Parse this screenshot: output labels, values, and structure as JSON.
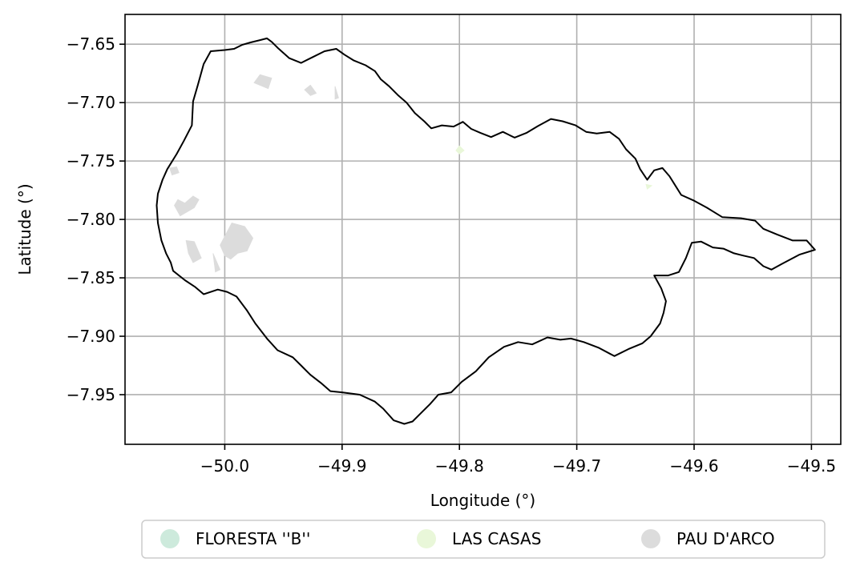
{
  "chart_data": {
    "type": "map",
    "title": "",
    "xlabel": "Longitude (°)",
    "ylabel": "Latitude (°)",
    "xlim": [
      -50.085,
      -49.475
    ],
    "ylim": [
      -7.9925,
      -7.6245
    ],
    "x_ticks": [
      -50.0,
      -49.9,
      -49.8,
      -49.7,
      -49.6,
      -49.5
    ],
    "x_tick_labels": [
      "−50.0",
      "−49.9",
      "−49.8",
      "−49.7",
      "−49.6",
      "−49.5"
    ],
    "y_ticks": [
      -7.65,
      -7.7,
      -7.75,
      -7.8,
      -7.85,
      -7.9,
      -7.95
    ],
    "y_tick_labels": [
      "−7.65",
      "−7.70",
      "−7.75",
      "−7.80",
      "−7.85",
      "−7.90",
      "−7.95"
    ],
    "grid": true,
    "legend_position": "bottom-center",
    "categories": [
      {
        "name": "FLORESTA ''B''",
        "color": "#cdeadc"
      },
      {
        "name": "LAS CASAS",
        "color": "#e9f7d9"
      },
      {
        "name": "PAU D'ARCO",
        "color": "#dcdcdc"
      }
    ],
    "boundary": {
      "color": "#000000",
      "lon_lat": [
        [
          -50.028,
          -7.7195
        ],
        [
          -50.027,
          -7.699
        ],
        [
          -50.023,
          -7.685
        ],
        [
          -50.018,
          -7.667
        ],
        [
          -50.012,
          -7.656
        ],
        [
          -50.0,
          -7.655
        ],
        [
          -49.992,
          -7.654
        ],
        [
          -49.985,
          -7.6505
        ],
        [
          -49.978,
          -7.6485
        ],
        [
          -49.97,
          -7.6465
        ],
        [
          -49.964,
          -7.645
        ],
        [
          -49.96,
          -7.648
        ],
        [
          -49.955,
          -7.653
        ],
        [
          -49.945,
          -7.662
        ],
        [
          -49.935,
          -7.666
        ],
        [
          -49.925,
          -7.661
        ],
        [
          -49.915,
          -7.656
        ],
        [
          -49.905,
          -7.654
        ],
        [
          -49.898,
          -7.659
        ],
        [
          -49.89,
          -7.664
        ],
        [
          -49.88,
          -7.668
        ],
        [
          -49.872,
          -7.673
        ],
        [
          -49.867,
          -7.68
        ],
        [
          -49.86,
          -7.686
        ],
        [
          -49.852,
          -7.694
        ],
        [
          -49.845,
          -7.7
        ],
        [
          -49.838,
          -7.709
        ],
        [
          -49.83,
          -7.716
        ],
        [
          -49.824,
          -7.722
        ],
        [
          -49.815,
          -7.7195
        ],
        [
          -49.805,
          -7.7205
        ],
        [
          -49.797,
          -7.7165
        ],
        [
          -49.79,
          -7.7225
        ],
        [
          -49.782,
          -7.726
        ],
        [
          -49.773,
          -7.7295
        ],
        [
          -49.763,
          -7.725
        ],
        [
          -49.753,
          -7.73
        ],
        [
          -49.743,
          -7.726
        ],
        [
          -49.733,
          -7.72
        ],
        [
          -49.722,
          -7.714
        ],
        [
          -49.712,
          -7.716
        ],
        [
          -49.701,
          -7.7195
        ],
        [
          -49.692,
          -7.725
        ],
        [
          -49.683,
          -7.7265
        ],
        [
          -49.672,
          -7.725
        ],
        [
          -49.664,
          -7.731
        ],
        [
          -49.658,
          -7.74
        ],
        [
          -49.65,
          -7.748
        ],
        [
          -49.646,
          -7.757
        ],
        [
          -49.64,
          -7.766
        ],
        [
          -49.634,
          -7.758
        ],
        [
          -49.627,
          -7.756
        ],
        [
          -49.621,
          -7.763
        ],
        [
          -49.616,
          -7.771
        ],
        [
          -49.611,
          -7.779
        ],
        [
          -49.6,
          -7.784
        ],
        [
          -49.589,
          -7.79
        ],
        [
          -49.576,
          -7.798
        ],
        [
          -49.56,
          -7.799
        ],
        [
          -49.548,
          -7.801
        ],
        [
          -49.541,
          -7.808
        ],
        [
          -49.529,
          -7.813
        ],
        [
          -49.516,
          -7.818
        ],
        [
          -49.504,
          -7.818
        ],
        [
          -49.497,
          -7.826
        ],
        [
          -49.51,
          -7.83
        ],
        [
          -49.525,
          -7.838
        ],
        [
          -49.534,
          -7.843
        ],
        [
          -49.541,
          -7.84
        ],
        [
          -49.549,
          -7.833
        ],
        [
          -49.558,
          -7.831
        ],
        [
          -49.566,
          -7.829
        ],
        [
          -49.575,
          -7.825
        ],
        [
          -49.584,
          -7.824
        ],
        [
          -49.594,
          -7.819
        ],
        [
          -49.602,
          -7.82
        ],
        [
          -49.607,
          -7.833
        ],
        [
          -49.613,
          -7.845
        ],
        [
          -49.622,
          -7.848
        ],
        [
          -49.634,
          -7.848
        ],
        [
          -49.628,
          -7.859
        ],
        [
          -49.624,
          -7.87
        ],
        [
          -49.626,
          -7.88
        ],
        [
          -49.629,
          -7.889
        ],
        [
          -49.637,
          -7.9
        ],
        [
          -49.644,
          -7.906
        ],
        [
          -49.656,
          -7.911
        ],
        [
          -49.668,
          -7.917
        ],
        [
          -49.681,
          -7.91
        ],
        [
          -49.694,
          -7.905
        ],
        [
          -49.705,
          -7.902
        ],
        [
          -49.714,
          -7.903
        ],
        [
          -49.725,
          -7.901
        ],
        [
          -49.738,
          -7.907
        ],
        [
          -49.75,
          -7.905
        ],
        [
          -49.762,
          -7.909
        ],
        [
          -49.775,
          -7.918
        ],
        [
          -49.786,
          -7.93
        ],
        [
          -49.798,
          -7.939
        ],
        [
          -49.807,
          -7.948
        ],
        [
          -49.818,
          -7.95
        ],
        [
          -49.825,
          -7.958
        ],
        [
          -49.833,
          -7.966
        ],
        [
          -49.84,
          -7.973
        ],
        [
          -49.847,
          -7.975
        ],
        [
          -49.856,
          -7.972
        ],
        [
          -49.865,
          -7.962
        ],
        [
          -49.872,
          -7.956
        ],
        [
          -49.885,
          -7.95
        ],
        [
          -49.9,
          -7.948
        ],
        [
          -49.91,
          -7.947
        ],
        [
          -49.918,
          -7.94
        ],
        [
          -49.927,
          -7.933
        ],
        [
          -49.935,
          -7.925
        ],
        [
          -49.942,
          -7.918
        ],
        [
          -49.955,
          -7.912
        ],
        [
          -49.964,
          -7.902
        ],
        [
          -49.974,
          -7.889
        ],
        [
          -49.981,
          -7.878
        ],
        [
          -49.99,
          -7.866
        ],
        [
          -49.998,
          -7.862
        ],
        [
          -50.006,
          -7.86
        ],
        [
          -50.018,
          -7.864
        ],
        [
          -50.025,
          -7.858
        ],
        [
          -50.034,
          -7.852
        ],
        [
          -50.044,
          -7.844
        ],
        [
          -50.046,
          -7.837
        ],
        [
          -50.05,
          -7.829
        ],
        [
          -50.054,
          -7.818
        ],
        [
          -50.057,
          -7.803
        ],
        [
          -50.058,
          -7.788
        ],
        [
          -50.057,
          -7.778
        ],
        [
          -50.053,
          -7.766
        ],
        [
          -50.049,
          -7.757
        ],
        [
          -50.041,
          -7.744
        ],
        [
          -50.035,
          -7.733
        ],
        [
          -50.028,
          -7.7195
        ]
      ]
    },
    "regions": [
      {
        "name": "PAU D'ARCO",
        "color": "#dcdcdc",
        "polygons": [
          [
            [
              -49.975,
              -7.683
            ],
            [
              -49.97,
              -7.676
            ],
            [
              -49.96,
              -7.679
            ],
            [
              -49.963,
              -7.688
            ]
          ],
          [
            [
              -49.932,
              -7.689
            ],
            [
              -49.927,
              -7.685
            ],
            [
              -49.922,
              -7.692
            ],
            [
              -49.927,
              -7.694
            ]
          ],
          [
            [
              -49.906,
              -7.686
            ],
            [
              -49.903,
              -7.696
            ],
            [
              -49.906,
              -7.697
            ]
          ],
          [
            [
              -50.047,
              -7.756
            ],
            [
              -50.041,
              -7.755
            ],
            [
              -50.039,
              -7.76
            ],
            [
              -50.045,
              -7.762
            ]
          ],
          [
            [
              -50.043,
              -7.788
            ],
            [
              -50.04,
              -7.783
            ],
            [
              -50.034,
              -7.786
            ],
            [
              -50.027,
              -7.78
            ],
            [
              -50.022,
              -7.783
            ],
            [
              -50.026,
              -7.79
            ],
            [
              -50.038,
              -7.797
            ]
          ],
          [
            [
              -50.004,
              -7.822
            ],
            [
              -49.994,
              -7.803
            ],
            [
              -49.983,
              -7.806
            ],
            [
              -49.976,
              -7.816
            ],
            [
              -49.981,
              -7.827
            ],
            [
              -49.989,
              -7.829
            ],
            [
              -49.995,
              -7.834
            ],
            [
              -50.0,
              -7.831
            ]
          ],
          [
            [
              -50.033,
              -7.818
            ],
            [
              -50.026,
              -7.819
            ],
            [
              -50.02,
              -7.833
            ],
            [
              -50.027,
              -7.837
            ],
            [
              -50.031,
              -7.829
            ]
          ],
          [
            [
              -50.01,
              -7.829
            ],
            [
              -50.008,
              -7.845
            ],
            [
              -50.004,
              -7.843
            ]
          ]
        ]
      },
      {
        "name": "LAS CASAS",
        "color": "#e9f7d9",
        "polygons": [
          [
            [
              -49.803,
              -7.741
            ],
            [
              -49.8,
              -7.737
            ],
            [
              -49.796,
              -7.741
            ],
            [
              -49.8,
              -7.744
            ]
          ],
          [
            [
              -49.641,
              -7.77
            ],
            [
              -49.636,
              -7.771
            ],
            [
              -49.64,
              -7.774
            ]
          ]
        ]
      }
    ]
  }
}
